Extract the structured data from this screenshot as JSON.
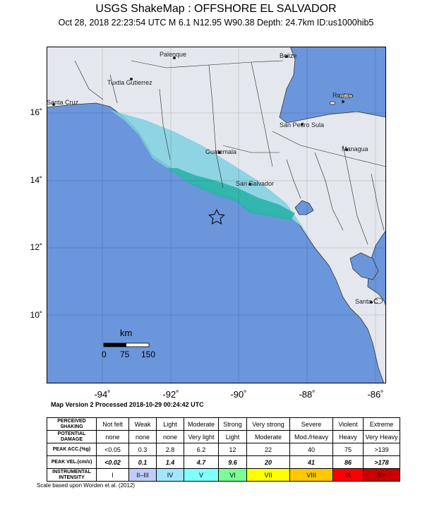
{
  "header": {
    "title": "USGS ShakeMap : OFFSHORE EL SALVADOR",
    "subtitle": "Oct 28, 2018 22:23:54 UTC   M 6.1   N12.95 W90.38   Depth: 24.7km   ID:us1000hib5"
  },
  "map": {
    "lat_labels": [
      "16˚",
      "14˚",
      "12˚",
      "10˚"
    ],
    "lon_labels": [
      "-94˚",
      "-92˚",
      "-90˚",
      "-88˚",
      "-86˚"
    ],
    "places": [
      "Palenque",
      "Belize",
      "Tuxtla Gutierrez",
      "Roatan",
      "Santa Cruz",
      "San Pedro Sula",
      "Guatemala",
      "Managua",
      "San Salvador",
      "Santa C"
    ],
    "epicenter_icon": "star-icon",
    "scale": {
      "unit": "km",
      "ticks": [
        "0",
        "75",
        "150"
      ]
    },
    "colors": {
      "ocean": "#6b96dc",
      "land": "#e4e8ee",
      "shaking_light": "#7fd0e0",
      "shaking_strong": "#2ab3a8"
    }
  },
  "map_version": "Map Version 2 Processed 2018-10-29 00:24:42 UTC",
  "legend": {
    "rows": [
      {
        "label": "PERCEIVED SHAKING",
        "cells": [
          "Not felt",
          "Weak",
          "Light",
          "Moderate",
          "Strong",
          "Very strong",
          "Severe",
          "Violent",
          "Extreme"
        ]
      },
      {
        "label": "POTENTIAL DAMAGE",
        "cells": [
          "none",
          "none",
          "none",
          "Very light",
          "Light",
          "Moderate",
          "Mod./Heavy",
          "Heavy",
          "Very Heavy"
        ]
      },
      {
        "label": "PEAK ACC.(%g)",
        "cells": [
          "<0.05",
          "0.3",
          "2.8",
          "6.2",
          "12",
          "22",
          "40",
          "75",
          ">139"
        ]
      },
      {
        "label": "PEAK VEL.(cm/s)",
        "cells": [
          "<0.02",
          "0.1",
          "1.4",
          "4.7",
          "9.6",
          "20",
          "41",
          "86",
          ">178"
        ]
      },
      {
        "label": "INSTRUMENTAL INTENSITY",
        "cells": [
          "I",
          "II–III",
          "IV",
          "V",
          "VI",
          "VII",
          "VIII",
          "IX",
          "X+"
        ]
      }
    ],
    "intensity_colors": [
      "#ffffff",
      "#bfccff",
      "#a0e6ff",
      "#80ffff",
      "#7aff93",
      "#ffff00",
      "#ffc800",
      "#ff0000",
      "#c80000"
    ]
  },
  "scale_note": "Scale based upon Worden et al. (2012)"
}
